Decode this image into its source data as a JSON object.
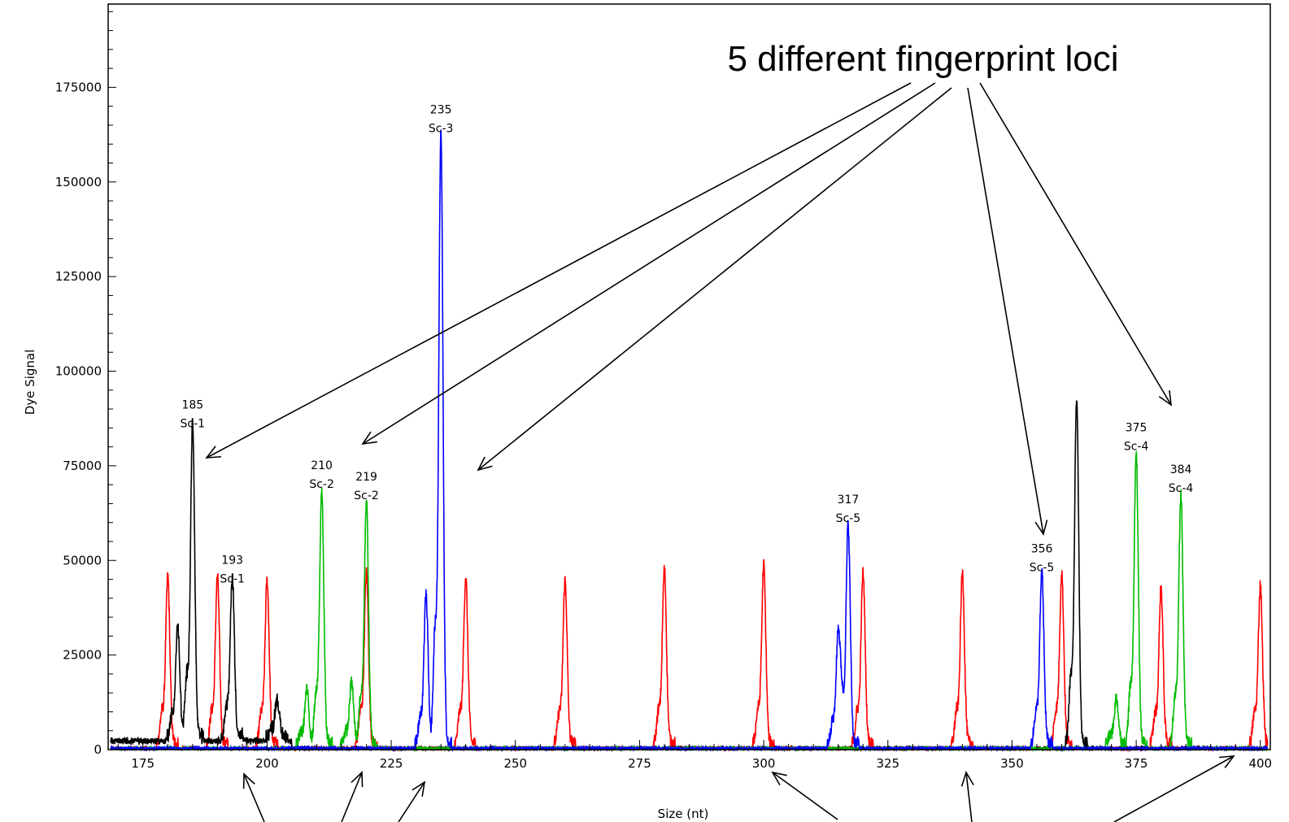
{
  "chart_data": {
    "type": "line",
    "title": "",
    "xlabel": "Size (nt)",
    "ylabel": "Dye Signal",
    "xlim": [
      168,
      402
    ],
    "ylim": [
      0,
      197000
    ],
    "x_ticks": [
      175,
      200,
      225,
      250,
      275,
      300,
      325,
      350,
      375,
      400
    ],
    "y_ticks": [
      0,
      25000,
      50000,
      75000,
      100000,
      125000,
      150000,
      175000
    ],
    "grid": false,
    "legend": "none",
    "series": [
      {
        "color": "#ff0000",
        "peaks": [
          {
            "x": 180,
            "y": 44000
          },
          {
            "x": 190,
            "y": 44000
          },
          {
            "x": 200,
            "y": 43000
          },
          {
            "x": 220,
            "y": 45000
          },
          {
            "x": 240,
            "y": 44000
          },
          {
            "x": 260,
            "y": 43000
          },
          {
            "x": 280,
            "y": 46000
          },
          {
            "x": 300,
            "y": 47000
          },
          {
            "x": 320,
            "y": 45000
          },
          {
            "x": 340,
            "y": 45000
          },
          {
            "x": 360,
            "y": 45000
          },
          {
            "x": 380,
            "y": 41000
          },
          {
            "x": 400,
            "y": 42000
          }
        ]
      },
      {
        "color": "#000000",
        "peaks": [
          {
            "x": 182,
            "y": 29000
          },
          {
            "x": 185,
            "y": 83000
          },
          {
            "x": 193,
            "y": 42000
          },
          {
            "x": 202,
            "y": 10000
          },
          {
            "x": 363,
            "y": 91000
          }
        ]
      },
      {
        "color": "#00bb00",
        "peaks": [
          {
            "x": 208,
            "y": 14000
          },
          {
            "x": 211,
            "y": 67000
          },
          {
            "x": 217,
            "y": 16000
          },
          {
            "x": 220,
            "y": 64000
          },
          {
            "x": 371,
            "y": 12000
          },
          {
            "x": 375,
            "y": 77000
          },
          {
            "x": 384,
            "y": 66000
          }
        ]
      },
      {
        "color": "#0000ff",
        "peaks": [
          {
            "x": 232,
            "y": 39000
          },
          {
            "x": 235,
            "y": 161000
          },
          {
            "x": 315,
            "y": 30000
          },
          {
            "x": 317,
            "y": 58000
          },
          {
            "x": 356,
            "y": 45000
          }
        ]
      }
    ],
    "peak_labels": [
      {
        "size": "185",
        "locus": "Sc-1",
        "x": 185,
        "y": 83000
      },
      {
        "size": "193",
        "locus": "Sc-1",
        "x": 193,
        "y": 42000
      },
      {
        "size": "210",
        "locus": "Sc-2",
        "x": 211,
        "y": 67000
      },
      {
        "size": "219",
        "locus": "Sc-2",
        "x": 220,
        "y": 64000
      },
      {
        "size": "235",
        "locus": "Sc-3",
        "x": 235,
        "y": 161000
      },
      {
        "size": "317",
        "locus": "Sc-5",
        "x": 317,
        "y": 58000
      },
      {
        "size": "356",
        "locus": "Sc-5",
        "x": 356,
        "y": 45000
      },
      {
        "size": "375",
        "locus": "Sc-4",
        "x": 375,
        "y": 77000
      },
      {
        "size": "384",
        "locus": "Sc-4",
        "x": 384,
        "y": 66000
      }
    ],
    "annotations": [
      {
        "text": "5 different fingerprint loci"
      }
    ]
  }
}
